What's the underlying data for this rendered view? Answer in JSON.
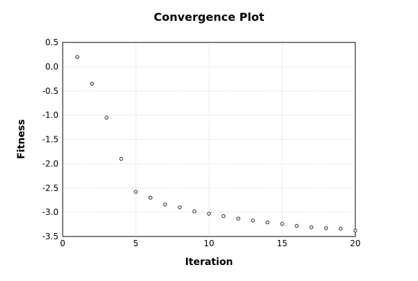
{
  "figure": {
    "background": "#ffffff"
  },
  "chart_data": {
    "type": "scatter",
    "title": "Convergence Plot",
    "xlabel": "Iteration",
    "ylabel": "Fitness",
    "xlim": [
      0,
      20
    ],
    "ylim": [
      -3.5,
      0.5
    ],
    "x_ticks": [
      "0",
      "5",
      "10",
      "15",
      "20"
    ],
    "y_ticks": [
      "0.5",
      "0.0",
      "-0.5",
      "-1.0",
      "-1.5",
      "-2.0",
      "-2.5",
      "-3.0",
      "-3.5"
    ],
    "grid": true,
    "grid_style": "dotted",
    "legend": false,
    "series": [
      {
        "name": "fitness",
        "marker": "open-circle",
        "x": [
          1,
          2,
          3,
          4,
          5,
          6,
          7,
          8,
          9,
          10,
          11,
          12,
          13,
          14,
          15,
          16,
          17,
          18,
          19,
          20
        ],
        "y": [
          0.2,
          -0.35,
          -1.05,
          -1.9,
          -2.58,
          -2.7,
          -2.84,
          -2.9,
          -2.98,
          -3.03,
          -3.08,
          -3.13,
          -3.17,
          -3.21,
          -3.24,
          -3.28,
          -3.31,
          -3.33,
          -3.34,
          -3.38
        ]
      }
    ],
    "colors": {
      "marker_stroke": "#222222",
      "marker_fill": "#ffffff",
      "grid": "#c4c4c4",
      "border": "#000000",
      "text": "#000000"
    }
  }
}
